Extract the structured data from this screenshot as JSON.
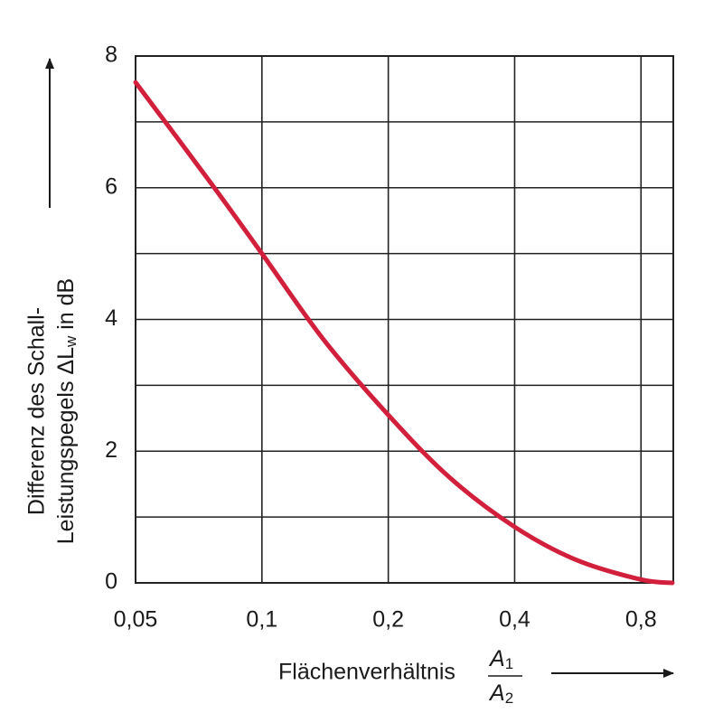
{
  "chart_data": {
    "type": "line",
    "ylabel": {
      "line1": "Differenz des Schall-",
      "line2": "Leistungspegels ΔL",
      "line2_sub": "w",
      "line2_end": " in dB"
    },
    "xlabel": "Flächenverhältnis",
    "xlabel_fraction": {
      "numerator": {
        "base": "A",
        "sub": "1"
      },
      "denominator": {
        "base": "A",
        "sub": "2"
      }
    },
    "x": [
      0.05,
      0.075,
      0.1,
      0.14,
      0.2,
      0.28,
      0.4,
      0.56,
      0.8,
      0.95
    ],
    "series": [
      {
        "color": "#d21f3c",
        "values": [
          7.6,
          6.1,
          5.0,
          3.7,
          2.55,
          1.6,
          0.85,
          0.35,
          0.05,
          0
        ]
      }
    ],
    "xscale": "log",
    "xlim": [
      0.05,
      0.955
    ],
    "xticks": [
      {
        "value": 0.05,
        "label": "0,05"
      },
      {
        "value": 0.1,
        "label": "0,1"
      },
      {
        "value": 0.2,
        "label": "0,2"
      },
      {
        "value": 0.4,
        "label": "0,4"
      },
      {
        "value": 0.8,
        "label": "0,8"
      }
    ],
    "ylim": [
      0,
      8
    ],
    "yticks": [
      0,
      2,
      4,
      6,
      8
    ],
    "y_minor_grid": [
      1,
      3,
      5,
      7
    ],
    "grid": true
  }
}
